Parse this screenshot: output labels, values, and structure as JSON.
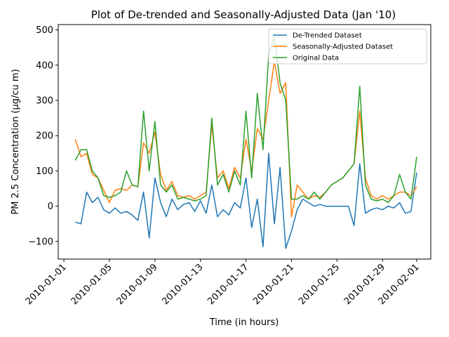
{
  "chart_data": {
    "type": "line",
    "title": "Plot of De-trended and Seasonally-Adjusted Data (Jan '10)",
    "xlabel": "Time (in hours)",
    "ylabel": "PM 2.5 Concentration (µg/cu m)",
    "xlim": [
      "2010-01-01",
      "2010-02-01"
    ],
    "ylim": [
      -150,
      515
    ],
    "x_ticks": [
      "2010-01-01",
      "2010-01-05",
      "2010-01-09",
      "2010-01-13",
      "2010-01-17",
      "2010-01-21",
      "2010-01-25",
      "2010-01-29",
      "2010-02-01"
    ],
    "y_ticks": [
      -100,
      0,
      100,
      200,
      300,
      400,
      500
    ],
    "legend_position": "top-right",
    "grid": false,
    "series": [
      {
        "name": "De-Trended Dataset",
        "color": "#1f77b4",
        "x": [
          "2010-01-02",
          "2010-01-02 12:00",
          "2010-01-03",
          "2010-01-03 12:00",
          "2010-01-04",
          "2010-01-04 12:00",
          "2010-01-05",
          "2010-01-05 12:00",
          "2010-01-06",
          "2010-01-06 12:00",
          "2010-01-07",
          "2010-01-07 12:00",
          "2010-01-08",
          "2010-01-08 12:00",
          "2010-01-09",
          "2010-01-09 12:00",
          "2010-01-10",
          "2010-01-10 12:00",
          "2010-01-11",
          "2010-01-11 12:00",
          "2010-01-12",
          "2010-01-12 12:00",
          "2010-01-13",
          "2010-01-13 12:00",
          "2010-01-14",
          "2010-01-14 12:00",
          "2010-01-15",
          "2010-01-15 12:00",
          "2010-01-16",
          "2010-01-16 12:00",
          "2010-01-17",
          "2010-01-17 12:00",
          "2010-01-18",
          "2010-01-18 12:00",
          "2010-01-19",
          "2010-01-19 12:00",
          "2010-01-20",
          "2010-01-20 12:00",
          "2010-01-21",
          "2010-01-21 12:00",
          "2010-01-22",
          "2010-01-22 12:00",
          "2010-01-23",
          "2010-01-23 12:00",
          "2010-01-24",
          "2010-01-24 12:00",
          "2010-01-25",
          "2010-01-25 12:00",
          "2010-01-26",
          "2010-01-26 12:00",
          "2010-01-27",
          "2010-01-27 12:00",
          "2010-01-28",
          "2010-01-28 12:00",
          "2010-01-29",
          "2010-01-29 12:00",
          "2010-01-30",
          "2010-01-30 12:00",
          "2010-01-31",
          "2010-01-31 12:00",
          "2010-02-01"
        ],
        "values": [
          -45,
          -50,
          40,
          10,
          25,
          -10,
          -20,
          -5,
          -20,
          -15,
          -25,
          -40,
          40,
          -90,
          80,
          10,
          -30,
          20,
          -10,
          5,
          10,
          -15,
          15,
          -20,
          60,
          -30,
          -10,
          -25,
          10,
          -5,
          80,
          -60,
          20,
          -115,
          150,
          -50,
          110,
          -120,
          -70,
          -10,
          20,
          10,
          0,
          5,
          0,
          0,
          0,
          0,
          0,
          -55,
          120,
          -20,
          -10,
          -5,
          -10,
          0,
          -5,
          10,
          -20,
          -15,
          95
        ]
      },
      {
        "name": "Seasonally-Adjusted Dataset",
        "color": "#ff7f0e",
        "x": [
          "2010-01-02",
          "2010-01-02 12:00",
          "2010-01-03",
          "2010-01-03 12:00",
          "2010-01-04",
          "2010-01-04 12:00",
          "2010-01-05",
          "2010-01-05 12:00",
          "2010-01-06",
          "2010-01-06 12:00",
          "2010-01-07",
          "2010-01-07 12:00",
          "2010-01-08",
          "2010-01-08 12:00",
          "2010-01-09",
          "2010-01-09 12:00",
          "2010-01-10",
          "2010-01-10 12:00",
          "2010-01-11",
          "2010-01-11 12:00",
          "2010-01-12",
          "2010-01-12 12:00",
          "2010-01-13",
          "2010-01-13 12:00",
          "2010-01-14",
          "2010-01-14 12:00",
          "2010-01-15",
          "2010-01-15 12:00",
          "2010-01-16",
          "2010-01-16 12:00",
          "2010-01-17",
          "2010-01-17 12:00",
          "2010-01-18",
          "2010-01-18 12:00",
          "2010-01-19",
          "2010-01-19 12:00",
          "2010-01-20",
          "2010-01-20 12:00",
          "2010-01-21",
          "2010-01-21 12:00",
          "2010-01-22",
          "2010-01-22 12:00",
          "2010-01-23",
          "2010-01-23 12:00",
          "2010-01-24",
          "2010-01-24 12:00",
          "2010-01-25",
          "2010-01-25 12:00",
          "2010-01-26",
          "2010-01-26 12:00",
          "2010-01-27",
          "2010-01-27 12:00",
          "2010-01-28",
          "2010-01-28 12:00",
          "2010-01-29",
          "2010-01-29 12:00",
          "2010-01-30",
          "2010-01-30 12:00",
          "2010-01-31",
          "2010-01-31 12:00",
          "2010-02-01"
        ],
        "values": [
          190,
          140,
          150,
          90,
          80,
          45,
          10,
          45,
          50,
          45,
          60,
          55,
          180,
          150,
          210,
          90,
          45,
          70,
          30,
          25,
          30,
          20,
          30,
          40,
          230,
          80,
          100,
          50,
          110,
          80,
          190,
          100,
          220,
          190,
          300,
          410,
          320,
          350,
          -30,
          60,
          40,
          20,
          30,
          25,
          40,
          60,
          70,
          80,
          100,
          120,
          270,
          80,
          30,
          20,
          30,
          20,
          30,
          40,
          40,
          30,
          55
        ]
      },
      {
        "name": "Original Data",
        "color": "#2ca02c",
        "x": [
          "2010-01-02",
          "2010-01-02 12:00",
          "2010-01-03",
          "2010-01-03 12:00",
          "2010-01-04",
          "2010-01-04 12:00",
          "2010-01-05",
          "2010-01-05 12:00",
          "2010-01-06",
          "2010-01-06 12:00",
          "2010-01-07",
          "2010-01-07 12:00",
          "2010-01-08",
          "2010-01-08 12:00",
          "2010-01-09",
          "2010-01-09 12:00",
          "2010-01-10",
          "2010-01-10 12:00",
          "2010-01-11",
          "2010-01-11 12:00",
          "2010-01-12",
          "2010-01-12 12:00",
          "2010-01-13",
          "2010-01-13 12:00",
          "2010-01-14",
          "2010-01-14 12:00",
          "2010-01-15",
          "2010-01-15 12:00",
          "2010-01-16",
          "2010-01-16 12:00",
          "2010-01-17",
          "2010-01-17 12:00",
          "2010-01-18",
          "2010-01-18 12:00",
          "2010-01-19",
          "2010-01-19 12:00",
          "2010-01-20",
          "2010-01-20 12:00",
          "2010-01-21",
          "2010-01-21 12:00",
          "2010-01-22",
          "2010-01-22 12:00",
          "2010-01-23",
          "2010-01-23 12:00",
          "2010-01-24",
          "2010-01-24 12:00",
          "2010-01-25",
          "2010-01-25 12:00",
          "2010-01-26",
          "2010-01-26 12:00",
          "2010-01-27",
          "2010-01-27 12:00",
          "2010-01-28",
          "2010-01-28 12:00",
          "2010-01-29",
          "2010-01-29 12:00",
          "2010-01-30",
          "2010-01-30 12:00",
          "2010-01-31",
          "2010-01-31 12:00",
          "2010-02-01"
        ],
        "values": [
          130,
          160,
          160,
          100,
          80,
          30,
          25,
          30,
          40,
          100,
          60,
          55,
          270,
          100,
          240,
          60,
          40,
          60,
          20,
          25,
          20,
          15,
          20,
          30,
          250,
          60,
          90,
          40,
          100,
          60,
          270,
          80,
          320,
          160,
          430,
          480,
          350,
          300,
          20,
          20,
          30,
          20,
          40,
          20,
          40,
          60,
          70,
          80,
          100,
          120,
          340,
          60,
          20,
          15,
          20,
          10,
          30,
          90,
          40,
          20,
          140
        ]
      }
    ]
  }
}
